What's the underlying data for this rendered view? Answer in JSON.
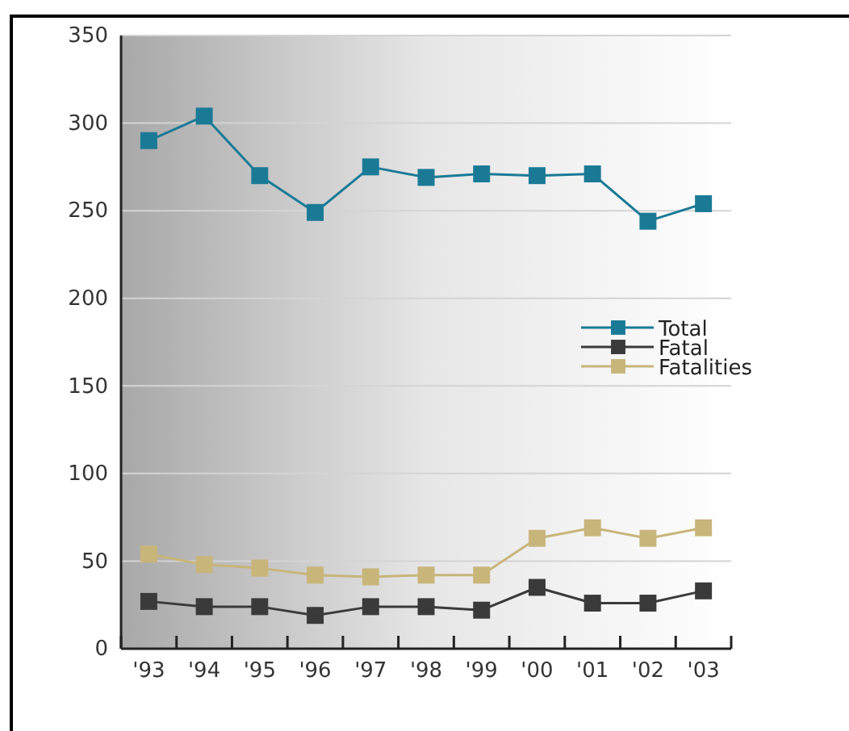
{
  "chart_data": {
    "type": "line",
    "categories": [
      "'93",
      "'94",
      "'95",
      "'96",
      "'97",
      "'98",
      "'99",
      "'00",
      "'01",
      "'02",
      "'03"
    ],
    "series": [
      {
        "name": "Total",
        "color": "#1a7a96",
        "values": [
          290,
          304,
          270,
          249,
          275,
          269,
          271,
          270,
          271,
          244,
          254
        ]
      },
      {
        "name": "Fatal",
        "color": "#3a3a3a",
        "values": [
          27,
          24,
          24,
          19,
          24,
          24,
          22,
          35,
          26,
          26,
          33
        ]
      },
      {
        "name": "Fatalities",
        "color": "#c8b57a",
        "values": [
          54,
          48,
          46,
          42,
          41,
          42,
          42,
          63,
          69,
          63,
          69
        ]
      }
    ],
    "ylim": [
      0,
      350
    ],
    "yticks": [
      0,
      50,
      100,
      150,
      200,
      250,
      300,
      350
    ],
    "grid": "y",
    "legend": "right",
    "marker": "square",
    "line_style": "solid"
  }
}
